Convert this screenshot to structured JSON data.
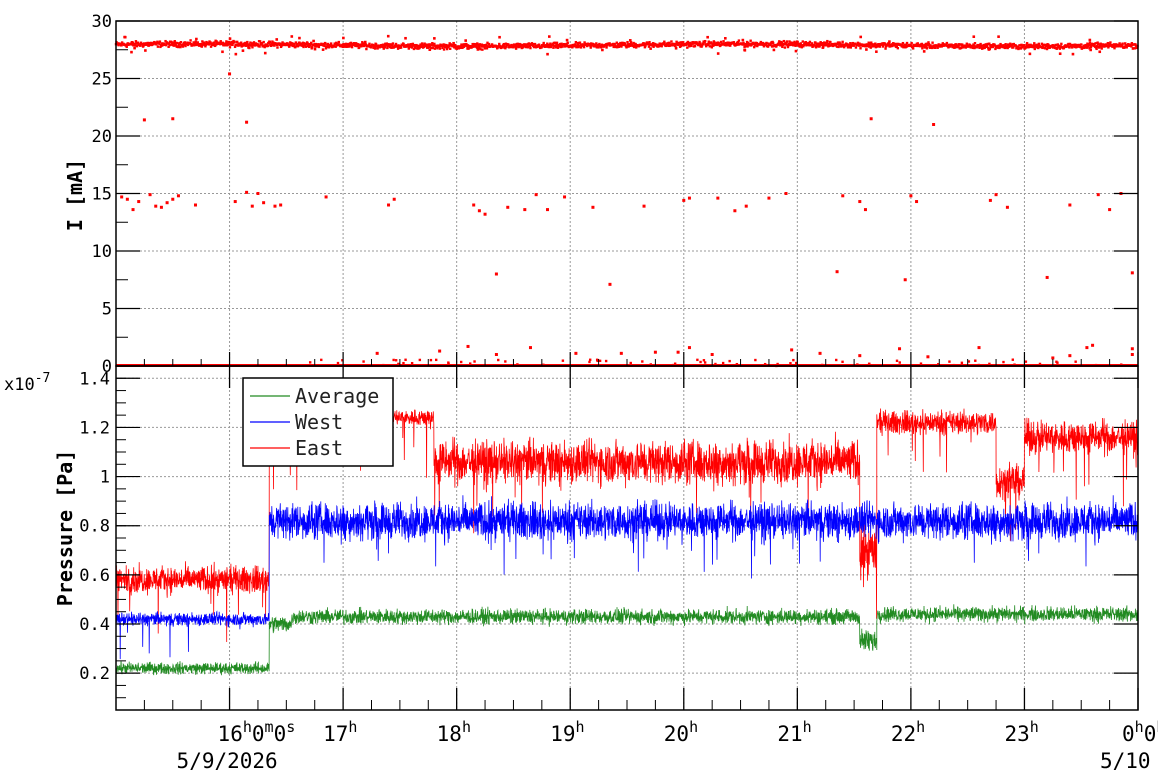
{
  "chart_data": [
    {
      "type": "scatter",
      "panel": "top",
      "ylabel": "I [mA]",
      "ylim": [
        0,
        30
      ],
      "yticks": [
        "0",
        "5",
        "10",
        "15",
        "20",
        "25",
        "30"
      ],
      "grid": true,
      "color": "#ff0000",
      "series": [
        {
          "values_description": "baseline beam current",
          "level": 27.9,
          "spread": 0.35
        }
      ],
      "outliers": [
        [
          15.05,
          14.7
        ],
        [
          15.1,
          14.5
        ],
        [
          15.15,
          13.6
        ],
        [
          15.2,
          14.3
        ],
        [
          15.25,
          21.4
        ],
        [
          15.3,
          14.9
        ],
        [
          15.35,
          13.9
        ],
        [
          15.4,
          13.8
        ],
        [
          15.45,
          14.2
        ],
        [
          15.5,
          21.5
        ],
        [
          15.5,
          14.5
        ],
        [
          15.55,
          14.8
        ],
        [
          15.7,
          14.0
        ],
        [
          16.0,
          25.4
        ],
        [
          16.05,
          14.3
        ],
        [
          16.15,
          21.2
        ],
        [
          16.15,
          15.1
        ],
        [
          16.2,
          13.9
        ],
        [
          16.25,
          15.0
        ],
        [
          16.3,
          14.2
        ],
        [
          16.4,
          13.9
        ],
        [
          16.45,
          14.0
        ],
        [
          16.85,
          14.7
        ],
        [
          17.4,
          14.0
        ],
        [
          17.45,
          14.5
        ],
        [
          18.15,
          14.0
        ],
        [
          18.2,
          13.5
        ],
        [
          18.25,
          13.2
        ],
        [
          18.35,
          8.0
        ],
        [
          18.45,
          13.8
        ],
        [
          18.6,
          13.6
        ],
        [
          18.7,
          14.9
        ],
        [
          18.8,
          13.6
        ],
        [
          18.95,
          14.7
        ],
        [
          19.2,
          13.8
        ],
        [
          19.35,
          7.1
        ],
        [
          19.65,
          13.9
        ],
        [
          20.0,
          14.4
        ],
        [
          20.05,
          14.6
        ],
        [
          20.3,
          14.6
        ],
        [
          20.45,
          13.5
        ],
        [
          20.55,
          13.9
        ],
        [
          20.75,
          14.6
        ],
        [
          20.9,
          15.0
        ],
        [
          21.35,
          8.2
        ],
        [
          21.4,
          14.8
        ],
        [
          21.55,
          14.3
        ],
        [
          21.6,
          13.6
        ],
        [
          21.65,
          21.5
        ],
        [
          21.95,
          7.5
        ],
        [
          22.0,
          14.8
        ],
        [
          22.05,
          14.3
        ],
        [
          22.2,
          21.0
        ],
        [
          22.7,
          14.4
        ],
        [
          22.75,
          14.9
        ],
        [
          22.85,
          13.8
        ],
        [
          23.2,
          7.7
        ],
        [
          23.4,
          14.0
        ],
        [
          23.65,
          14.9
        ],
        [
          23.75,
          13.6
        ],
        [
          23.85,
          15.0
        ],
        [
          23.95,
          8.1
        ],
        [
          23.55,
          1.6
        ],
        [
          23.6,
          1.8
        ],
        [
          23.4,
          0.9
        ],
        [
          23.95,
          1.5
        ],
        [
          23.95,
          1.0
        ],
        [
          18.1,
          1.7
        ],
        [
          18.65,
          1.6
        ],
        [
          20.05,
          1.6
        ],
        [
          20.95,
          1.4
        ],
        [
          21.9,
          1.5
        ],
        [
          22.6,
          1.6
        ],
        [
          17.3,
          1.1
        ],
        [
          17.85,
          1.3
        ],
        [
          19.05,
          1.1
        ],
        [
          19.45,
          1.1
        ],
        [
          19.75,
          1.2
        ],
        [
          20.25,
          1.0
        ],
        [
          21.2,
          1.1
        ],
        [
          21.55,
          0.9
        ],
        [
          22.15,
          0.8
        ],
        [
          23.25,
          0.7
        ],
        [
          18.35,
          1.0
        ],
        [
          19.95,
          1.2
        ]
      ]
    },
    {
      "type": "line",
      "panel": "bottom",
      "ylabel": "Pressure [Pa]",
      "yscale_label": "x10",
      "yscale_exp": "-7",
      "ylim": [
        0.05,
        1.45
      ],
      "yticks": [
        "0.2",
        "0.4",
        "0.6",
        "0.8",
        "1",
        "1.2",
        "1.4"
      ],
      "xlabel": "",
      "xlim": [
        15.0,
        24.0
      ],
      "xticks": [
        {
          "x": 16,
          "h": "16",
          "rest": "0",
          "m": "m",
          "s": "0",
          "sunit": "s",
          "date": "5/9/2026"
        },
        {
          "x": 17,
          "h": "17"
        },
        {
          "x": 18,
          "h": "18"
        },
        {
          "x": 19,
          "h": "19"
        },
        {
          "x": 20,
          "h": "20"
        },
        {
          "x": 21,
          "h": "21"
        },
        {
          "x": 22,
          "h": "22"
        },
        {
          "x": 23,
          "h": "23"
        },
        {
          "x": 24,
          "h": "0",
          "rest": "0",
          "date": "5/10"
        }
      ],
      "grid": true,
      "legend_position": "top-left",
      "series": [
        {
          "name": "Average",
          "color": "#228b22",
          "segments": [
            {
              "x": [
                15.0,
                16.35
              ],
              "mean": 0.22,
              "spread": 0.035
            },
            {
              "x": [
                16.35,
                16.55
              ],
              "mean": 0.4,
              "spread": 0.05
            },
            {
              "x": [
                16.55,
                21.55
              ],
              "mean": 0.43,
              "spread": 0.045
            },
            {
              "x": [
                21.55,
                21.7
              ],
              "mean": 0.33,
              "spread": 0.07
            },
            {
              "x": [
                21.7,
                24.0
              ],
              "mean": 0.44,
              "spread": 0.045
            }
          ]
        },
        {
          "name": "West",
          "color": "#0000ff",
          "segments": [
            {
              "x": [
                15.0,
                16.35
              ],
              "mean": 0.42,
              "spread": 0.04
            },
            {
              "x": [
                16.35,
                24.0
              ],
              "mean": 0.82,
              "spread": 0.11
            }
          ]
        },
        {
          "name": "East",
          "color": "#ff0000",
          "segments": [
            {
              "x": [
                15.0,
                16.35
              ],
              "mean": 0.58,
              "spread": 0.08
            },
            {
              "x": [
                16.35,
                17.0
              ],
              "mean": 1.15,
              "spread": 0.06
            },
            {
              "x": [
                17.0,
                17.8
              ],
              "mean": 1.24,
              "spread": 0.05
            },
            {
              "x": [
                17.8,
                21.55
              ],
              "mean": 1.06,
              "spread": 0.13
            },
            {
              "x": [
                21.55,
                21.7
              ],
              "mean": 0.7,
              "spread": 0.15
            },
            {
              "x": [
                21.7,
                22.75
              ],
              "mean": 1.22,
              "spread": 0.07
            },
            {
              "x": [
                22.75,
                23.0
              ],
              "mean": 0.98,
              "spread": 0.1
            },
            {
              "x": [
                23.0,
                24.0
              ],
              "mean": 1.16,
              "spread": 0.1
            }
          ]
        }
      ]
    }
  ]
}
